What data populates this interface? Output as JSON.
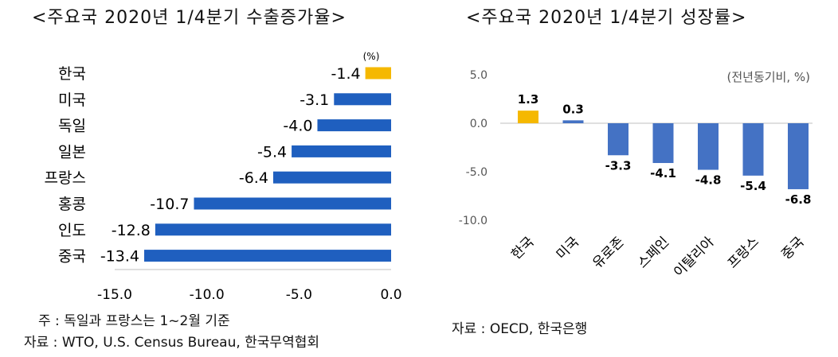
{
  "left": {
    "title": "<주요국 2020년 1/4분기 수출증가율>",
    "unit": "(%)",
    "note": "주 : 독일과 프랑스는 1~2월 기준",
    "source": "자료 : WTO, U.S. Census Bureau, 한국무역협회"
  },
  "right": {
    "title": "<주요국 2020년 1/4분기 성장률>",
    "unit": "(전년동기비, %)",
    "source": "자료 : OECD, 한국은행"
  },
  "colors": {
    "highlight": "#f5b800",
    "bar": "#1f5fbf",
    "bar_right": "#4472c4"
  },
  "chart_data": [
    {
      "type": "bar",
      "orientation": "horizontal",
      "title": "<주요국 2020년 1/4분기 수출증가율>",
      "categories": [
        "한국",
        "미국",
        "독일",
        "일본",
        "프랑스",
        "홍콩",
        "인도",
        "중국"
      ],
      "values": [
        -1.4,
        -3.1,
        -4.0,
        -5.4,
        -6.4,
        -10.7,
        -12.8,
        -13.4
      ],
      "value_labels": [
        "-1.4",
        "-3.1",
        "-4.0",
        "-5.4",
        "-6.4",
        "-10.7",
        "-12.8",
        "-13.4"
      ],
      "highlight": "한국",
      "xlim": [
        -15.0,
        0.0
      ],
      "xticks": [
        "-15.0",
        "-10.0",
        "-5.0",
        "0.0"
      ],
      "unit": "(%)"
    },
    {
      "type": "bar",
      "orientation": "vertical",
      "title": "<주요국 2020년 1/4분기 성장률>",
      "categories": [
        "한국",
        "미국",
        "유로존",
        "스페인",
        "이탈리아",
        "프랑스",
        "중국"
      ],
      "values": [
        1.3,
        0.3,
        -3.3,
        -4.1,
        -4.8,
        -5.4,
        -6.8
      ],
      "value_labels": [
        "1.3",
        "0.3",
        "-3.3",
        "-4.1",
        "-4.8",
        "-5.4",
        "-6.8"
      ],
      "highlight": "한국",
      "ylim": [
        -10.0,
        5.0
      ],
      "yticks": [
        "5.0",
        "0.0",
        "-5.0",
        "-10.0"
      ],
      "unit": "(전년동기비, %)"
    }
  ]
}
